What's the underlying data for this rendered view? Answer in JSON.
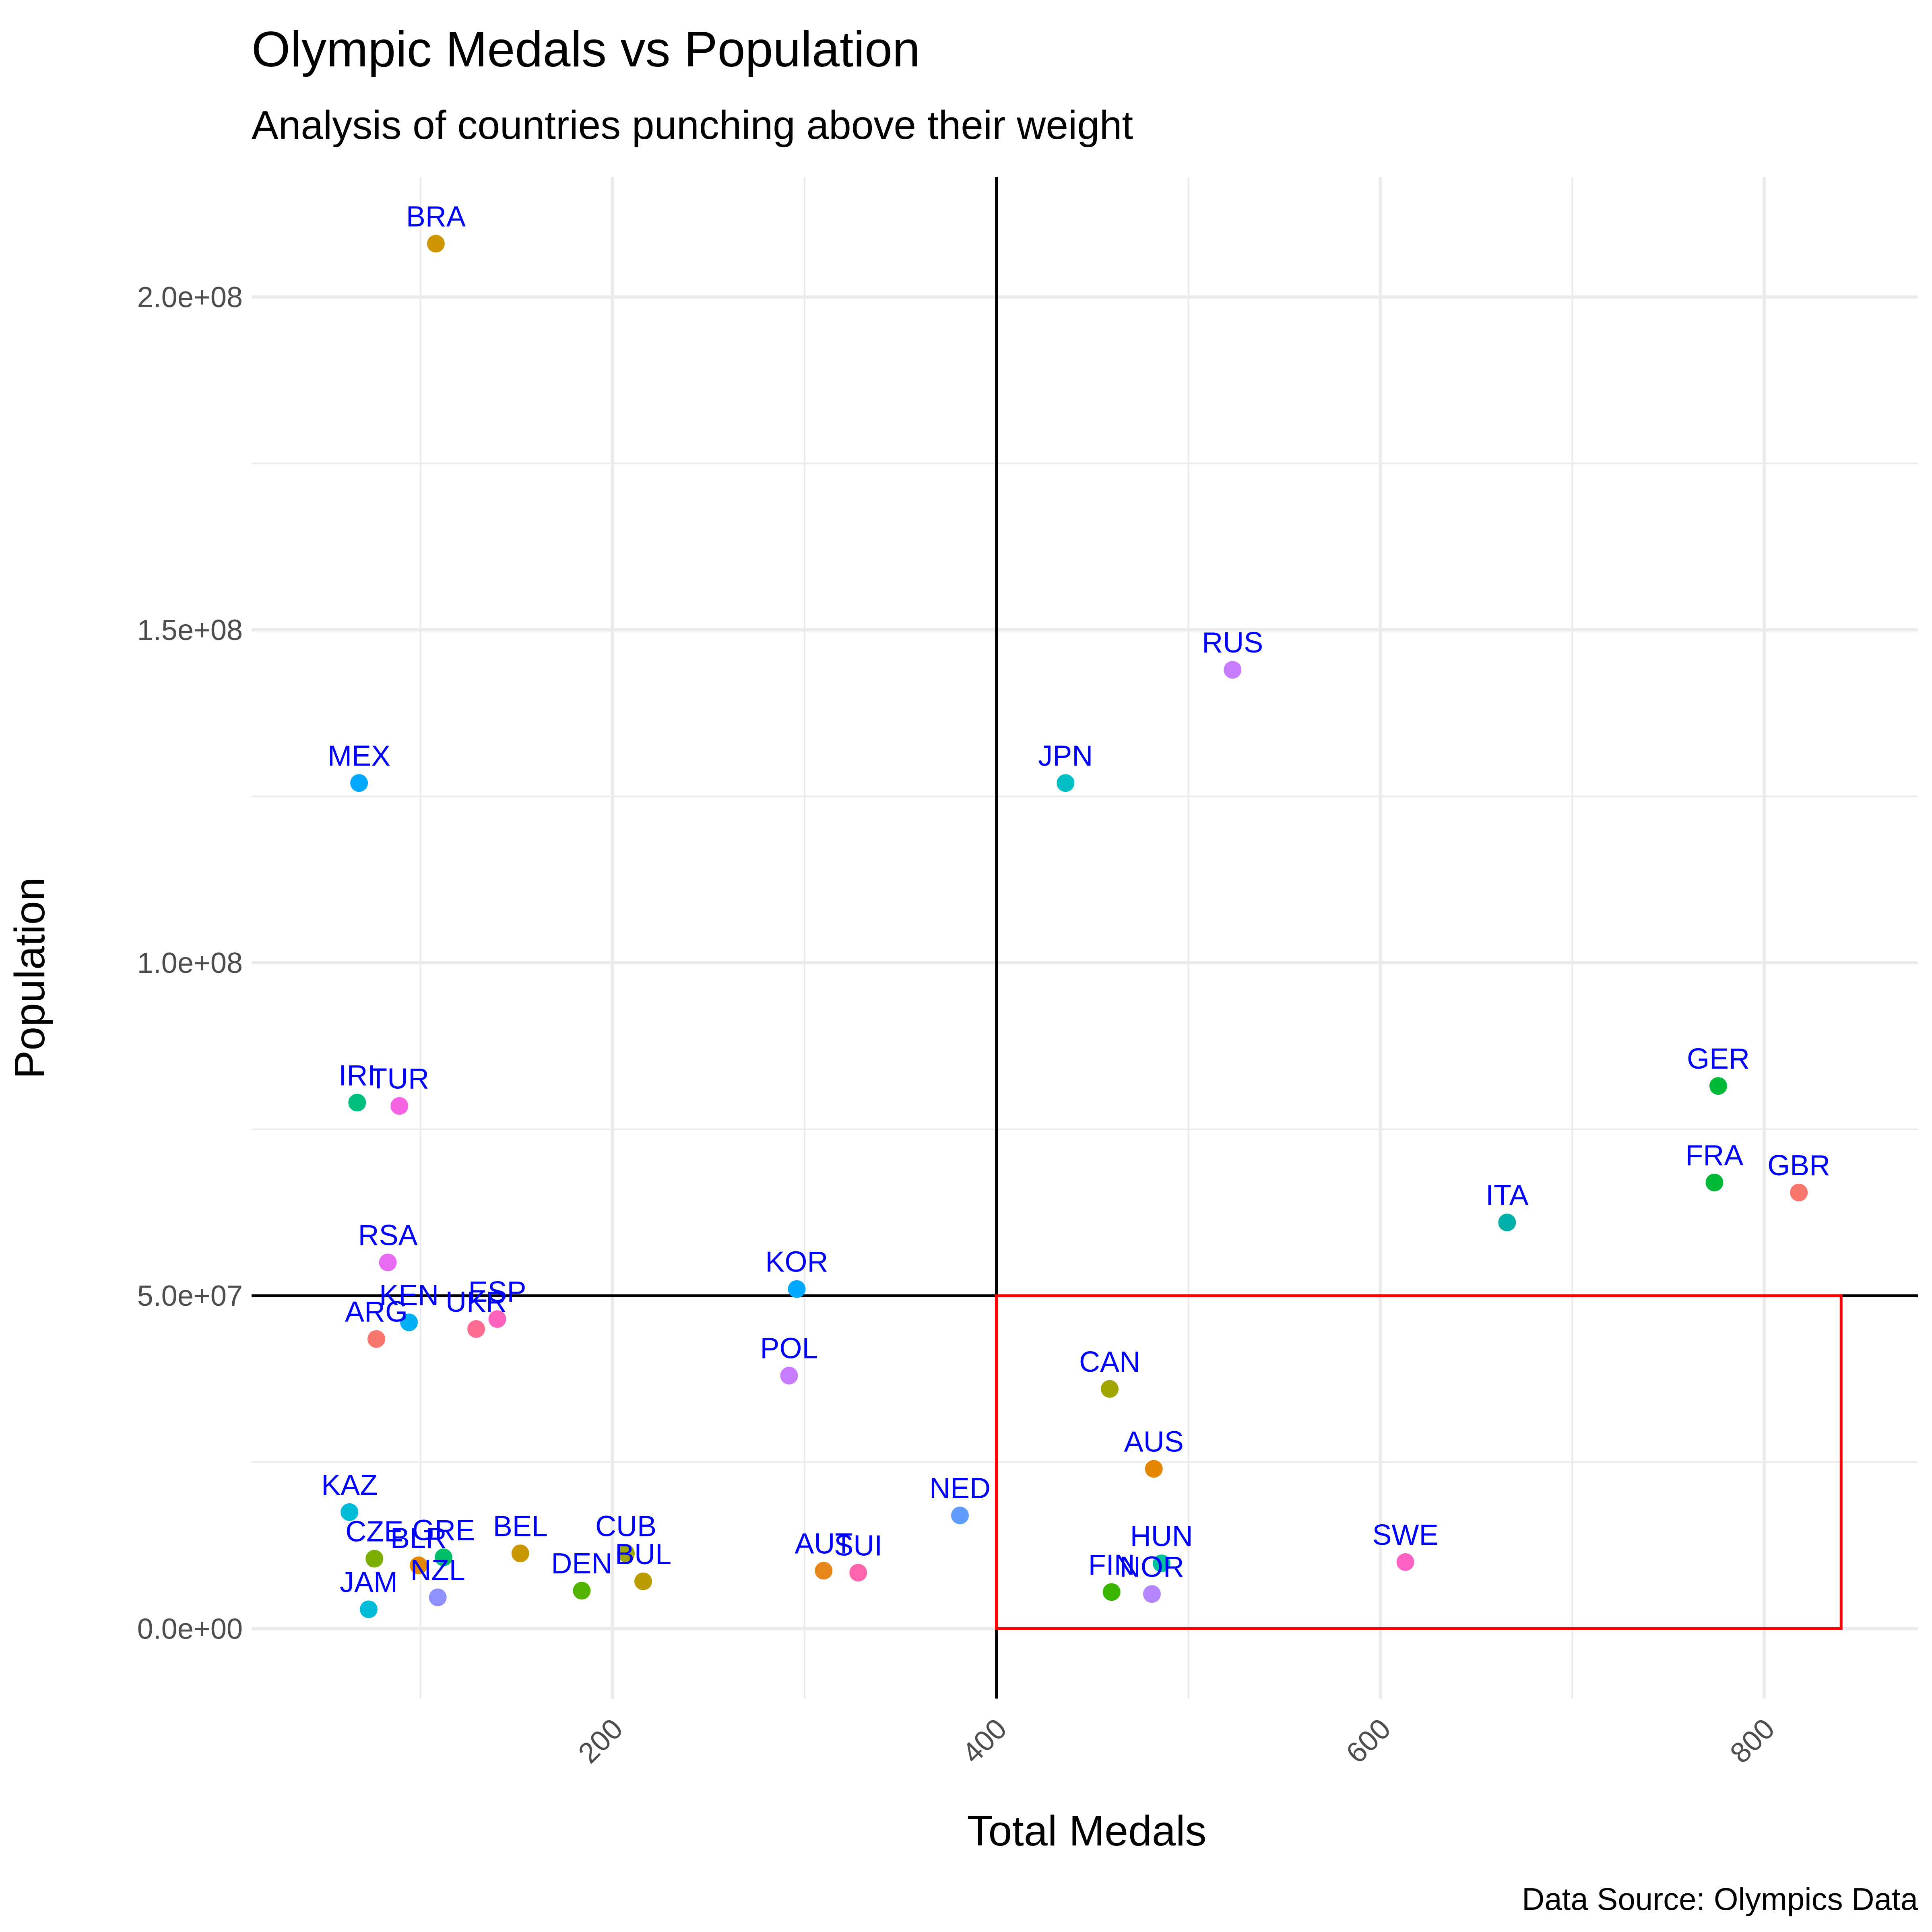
{
  "chart_data": {
    "type": "scatter",
    "title": "Olympic Medals vs Population",
    "subtitle": "Analysis of countries punching above their weight",
    "xlabel": "Total Medals",
    "ylabel": "Population",
    "caption": "Data Source: Olympics Data",
    "xlim": [
      12,
      880
    ],
    "ylim": [
      -10500000,
      218000000
    ],
    "x_ticks": [
      200,
      400,
      600,
      800
    ],
    "x_tick_labels": [
      "200",
      "400",
      "600",
      "800"
    ],
    "y_ticks": [
      0,
      50000000,
      100000000,
      150000000,
      200000000
    ],
    "y_tick_labels": [
      "0.0e+00",
      "5.0e+07",
      "1.0e+08",
      "1.5e+08",
      "2.0e+08"
    ],
    "grid": true,
    "legend": "none",
    "label_color": "#0000FF",
    "reference_lines": {
      "vertical_x": 400,
      "horizontal_y": 50000000,
      "color": "#000000"
    },
    "highlight_rect": {
      "x": [
        400,
        840
      ],
      "y": [
        0,
        50000000
      ],
      "color": "#FF0000"
    },
    "points": [
      {
        "label": "BRA",
        "x": 108,
        "y": 208000000,
        "color": "#CD9600"
      },
      {
        "label": "RUS",
        "x": 523,
        "y": 144000000,
        "color": "#C77CFF"
      },
      {
        "label": "MEX",
        "x": 68,
        "y": 127000000,
        "color": "#00A9FF"
      },
      {
        "label": "JPN",
        "x": 436,
        "y": 127000000,
        "color": "#00BFC4"
      },
      {
        "label": "GER",
        "x": 776,
        "y": 81500000,
        "color": "#00BA38"
      },
      {
        "label": "IRI",
        "x": 67,
        "y": 79000000,
        "color": "#00BF7D"
      },
      {
        "label": "TUR",
        "x": 89,
        "y": 78500000,
        "color": "#F564E3"
      },
      {
        "label": "FRA",
        "x": 774,
        "y": 67000000,
        "color": "#00BA38"
      },
      {
        "label": "GBR",
        "x": 818,
        "y": 65500000,
        "color": "#F8766D"
      },
      {
        "label": "ITA",
        "x": 666,
        "y": 61000000,
        "color": "#00B0A8"
      },
      {
        "label": "RSA",
        "x": 83,
        "y": 55000000,
        "color": "#E76BF3"
      },
      {
        "label": "KOR",
        "x": 296,
        "y": 51000000,
        "color": "#00A9FF"
      },
      {
        "label": "KEN",
        "x": 94,
        "y": 46000000,
        "color": "#00B0F6"
      },
      {
        "label": "ESP",
        "x": 140,
        "y": 46500000,
        "color": "#FF62BC"
      },
      {
        "label": "UKR",
        "x": 129,
        "y": 45000000,
        "color": "#FF6C91"
      },
      {
        "label": "ARG",
        "x": 77,
        "y": 43500000,
        "color": "#F8766D"
      },
      {
        "label": "POL",
        "x": 292,
        "y": 38000000,
        "color": "#C77CFF"
      },
      {
        "label": "CAN",
        "x": 459,
        "y": 36000000,
        "color": "#A3A500"
      },
      {
        "label": "AUS",
        "x": 482,
        "y": 24000000,
        "color": "#E58700"
      },
      {
        "label": "KAZ",
        "x": 63,
        "y": 17500000,
        "color": "#00BCD8"
      },
      {
        "label": "NED",
        "x": 381,
        "y": 17000000,
        "color": "#619CFF"
      },
      {
        "label": "CUB",
        "x": 207,
        "y": 11300000,
        "color": "#9CA700"
      },
      {
        "label": "BEL",
        "x": 152,
        "y": 11300000,
        "color": "#C99800"
      },
      {
        "label": "CZE",
        "x": 76,
        "y": 10500000,
        "color": "#7CAE00"
      },
      {
        "label": "GRE",
        "x": 112,
        "y": 10700000,
        "color": "#00BE67"
      },
      {
        "label": "SWE",
        "x": 613,
        "y": 10000000,
        "color": "#FF61C3"
      },
      {
        "label": "HUN",
        "x": 486,
        "y": 9800000,
        "color": "#00C19A"
      },
      {
        "label": "BLR",
        "x": 99,
        "y": 9500000,
        "color": "#E58700"
      },
      {
        "label": "AUT",
        "x": 310,
        "y": 8700000,
        "color": "#E7861B"
      },
      {
        "label": "SUI",
        "x": 328,
        "y": 8400000,
        "color": "#FF65AC"
      },
      {
        "label": "BUL",
        "x": 216,
        "y": 7100000,
        "color": "#BB9D00"
      },
      {
        "label": "DEN",
        "x": 184,
        "y": 5700000,
        "color": "#53B400"
      },
      {
        "label": "FIN",
        "x": 460,
        "y": 5500000,
        "color": "#39B600"
      },
      {
        "label": "NOR",
        "x": 481,
        "y": 5200000,
        "color": "#B385FF"
      },
      {
        "label": "NZL",
        "x": 109,
        "y": 4700000,
        "color": "#8F91FF"
      },
      {
        "label": "JAM",
        "x": 73,
        "y": 2900000,
        "color": "#00BCD8"
      }
    ]
  }
}
